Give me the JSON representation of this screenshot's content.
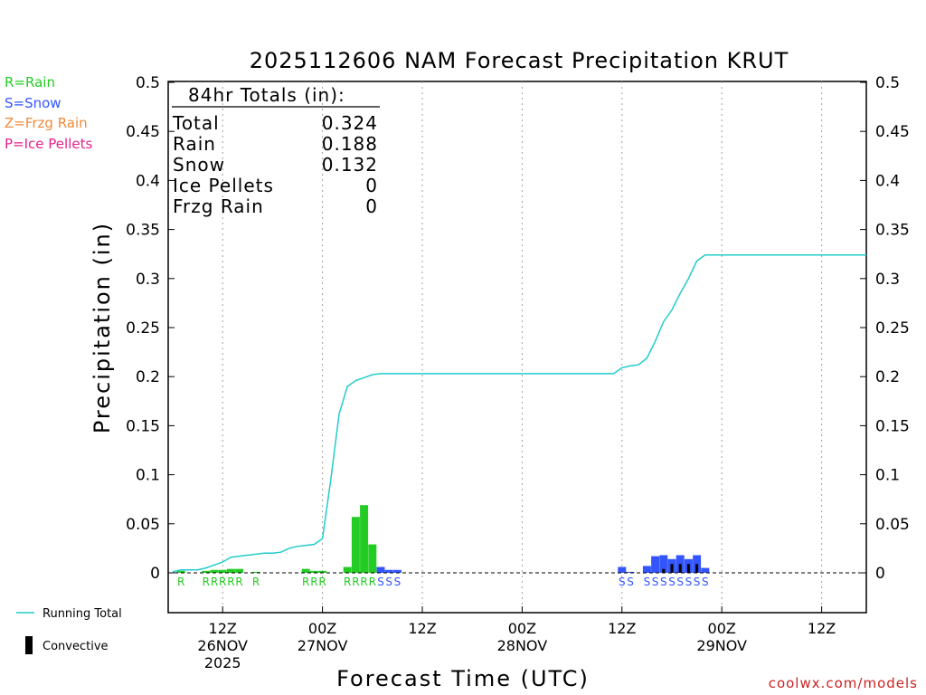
{
  "chart_data": {
    "type": "bar",
    "title": "2025112606 NAM Forecast Precipitation KRUT",
    "xlabel": "Forecast Time (UTC)",
    "ylabel": "Precipitation (in)",
    "ylim": [
      0,
      0.5
    ],
    "xlim_hours": [
      0,
      84
    ],
    "y_ticks": [
      "0",
      "0.05",
      "0.1",
      "0.15",
      "0.2",
      "0.25",
      "0.3",
      "0.35",
      "0.4",
      "0.45",
      "0.5"
    ],
    "y_tick_values": [
      0,
      0.05,
      0.1,
      0.15,
      0.2,
      0.25,
      0.3,
      0.35,
      0.4,
      0.45,
      0.5
    ],
    "x_ticks": [
      {
        "hour": 6,
        "label": "12Z",
        "date": "26NOV",
        "year": "2025"
      },
      {
        "hour": 18,
        "label": "00Z",
        "date": "27NOV",
        "year": ""
      },
      {
        "hour": 30,
        "label": "12Z",
        "date": "",
        "year": ""
      },
      {
        "hour": 42,
        "label": "00Z",
        "date": "28NOV",
        "year": ""
      },
      {
        "hour": 54,
        "label": "12Z",
        "date": "",
        "year": ""
      },
      {
        "hour": 66,
        "label": "00Z",
        "date": "29NOV",
        "year": ""
      },
      {
        "hour": 78,
        "label": "12Z",
        "date": "",
        "year": ""
      }
    ],
    "legend": [
      {
        "label": "R=Rain",
        "color": "#22cc22"
      },
      {
        "label": "S=Snow",
        "color": "#3355ff"
      },
      {
        "label": "Z=Frzg Rain",
        "color": "#f08a3c"
      },
      {
        "label": "P=Ice Pellets",
        "color": "#e8208c"
      }
    ],
    "bottom_legend": [
      {
        "label": "Running Total",
        "color": "#22cccc"
      },
      {
        "label": "Convective",
        "color": "#000000"
      }
    ],
    "totals": {
      "header": "84hr Totals (in):",
      "rows": [
        {
          "label": "Total",
          "value": "0.324"
        },
        {
          "label": "Rain",
          "value": "0.188"
        },
        {
          "label": "Snow",
          "value": "0.132"
        },
        {
          "label": "Ice Pellets",
          "value": "0"
        },
        {
          "label": "Frzg Rain",
          "value": "0"
        }
      ]
    },
    "bars": [
      {
        "hour": 1,
        "type": "R",
        "value": 0.002
      },
      {
        "hour": 4,
        "type": "R",
        "value": 0.002
      },
      {
        "hour": 5,
        "type": "R",
        "value": 0.003
      },
      {
        "hour": 6,
        "type": "R",
        "value": 0.003
      },
      {
        "hour": 7,
        "type": "R",
        "value": 0.004
      },
      {
        "hour": 8,
        "type": "R",
        "value": 0.004
      },
      {
        "hour": 10,
        "type": "R",
        "value": 0.001
      },
      {
        "hour": 16,
        "type": "R",
        "value": 0.004
      },
      {
        "hour": 17,
        "type": "R",
        "value": 0.002
      },
      {
        "hour": 18,
        "type": "R",
        "value": 0.002
      },
      {
        "hour": 21,
        "type": "R",
        "value": 0.006
      },
      {
        "hour": 22,
        "type": "R",
        "value": 0.057
      },
      {
        "hour": 23,
        "type": "R",
        "value": 0.069
      },
      {
        "hour": 24,
        "type": "R",
        "value": 0.029
      },
      {
        "hour": 25,
        "type": "S",
        "value": 0.006
      },
      {
        "hour": 26,
        "type": "S",
        "value": 0.003
      },
      {
        "hour": 27,
        "type": "S",
        "value": 0.003
      },
      {
        "hour": 54,
        "type": "S",
        "value": 0.006
      },
      {
        "hour": 55,
        "type": "S",
        "value": 0.001
      },
      {
        "hour": 57,
        "type": "S",
        "value": 0.007
      },
      {
        "hour": 58,
        "type": "S",
        "value": 0.017
      },
      {
        "hour": 59,
        "type": "S",
        "value": 0.018,
        "convective": 0.004
      },
      {
        "hour": 60,
        "type": "S",
        "value": 0.014,
        "convective": 0.009
      },
      {
        "hour": 61,
        "type": "S",
        "value": 0.018,
        "convective": 0.009
      },
      {
        "hour": 62,
        "type": "S",
        "value": 0.014,
        "convective": 0.009
      },
      {
        "hour": 63,
        "type": "S",
        "value": 0.018,
        "convective": 0.009
      },
      {
        "hour": 64,
        "type": "S",
        "value": 0.005
      }
    ],
    "type_labels": [
      {
        "hour": 1,
        "text": "R",
        "type": "R"
      },
      {
        "hour": 4,
        "text": "R",
        "type": "R"
      },
      {
        "hour": 5,
        "text": "R",
        "type": "R"
      },
      {
        "hour": 6,
        "text": "R",
        "type": "R"
      },
      {
        "hour": 7,
        "text": "R",
        "type": "R"
      },
      {
        "hour": 8,
        "text": "R",
        "type": "R"
      },
      {
        "hour": 10,
        "text": "R",
        "type": "R"
      },
      {
        "hour": 16,
        "text": "R",
        "type": "R"
      },
      {
        "hour": 17,
        "text": "R",
        "type": "R"
      },
      {
        "hour": 18,
        "text": "R",
        "type": "R"
      },
      {
        "hour": 21,
        "text": "R",
        "type": "R"
      },
      {
        "hour": 22,
        "text": "R",
        "type": "R"
      },
      {
        "hour": 23,
        "text": "R",
        "type": "R"
      },
      {
        "hour": 24,
        "text": "R",
        "type": "R"
      },
      {
        "hour": 25,
        "text": "S",
        "type": "S"
      },
      {
        "hour": 26,
        "text": "S",
        "type": "S"
      },
      {
        "hour": 27,
        "text": "S",
        "type": "S"
      },
      {
        "hour": 54,
        "text": "S",
        "type": "S"
      },
      {
        "hour": 55,
        "text": "S",
        "type": "S"
      },
      {
        "hour": 57,
        "text": "S",
        "type": "S"
      },
      {
        "hour": 58,
        "text": "S",
        "type": "S"
      },
      {
        "hour": 59,
        "text": "S",
        "type": "S"
      },
      {
        "hour": 60,
        "text": "S",
        "type": "S"
      },
      {
        "hour": 61,
        "text": "S",
        "type": "S"
      },
      {
        "hour": 62,
        "text": "S",
        "type": "S"
      },
      {
        "hour": 63,
        "text": "S",
        "type": "S"
      },
      {
        "hour": 64,
        "text": "S",
        "type": "S"
      }
    ],
    "running_total": {
      "hours": [
        0,
        1,
        2,
        3,
        4,
        5,
        6,
        7,
        8,
        9,
        10,
        11,
        12,
        13,
        14,
        15,
        16,
        17,
        18,
        19,
        20,
        21,
        22,
        23,
        24,
        25,
        26,
        27,
        28,
        53,
        54,
        55,
        56,
        57,
        58,
        59,
        60,
        61,
        62,
        63,
        64,
        84
      ],
      "values": [
        0.001,
        0.003,
        0.003,
        0.003,
        0.005,
        0.008,
        0.011,
        0.016,
        0.017,
        0.018,
        0.019,
        0.02,
        0.02,
        0.021,
        0.025,
        0.027,
        0.028,
        0.029,
        0.035,
        0.095,
        0.162,
        0.19,
        0.196,
        0.199,
        0.202,
        0.203,
        0.203,
        0.203,
        0.203,
        0.203,
        0.209,
        0.211,
        0.212,
        0.219,
        0.236,
        0.256,
        0.268,
        0.285,
        0.3,
        0.318,
        0.324,
        0.324
      ]
    },
    "colors": {
      "rain": "#22cc22",
      "snow": "#3355ff",
      "frzg_rain": "#f08a3c",
      "ice_pellets": "#e8208c",
      "running_total": "#22cccc",
      "convective": "#000000"
    },
    "credit": "coolwx.com/models",
    "credit_color": "#cc2222"
  }
}
